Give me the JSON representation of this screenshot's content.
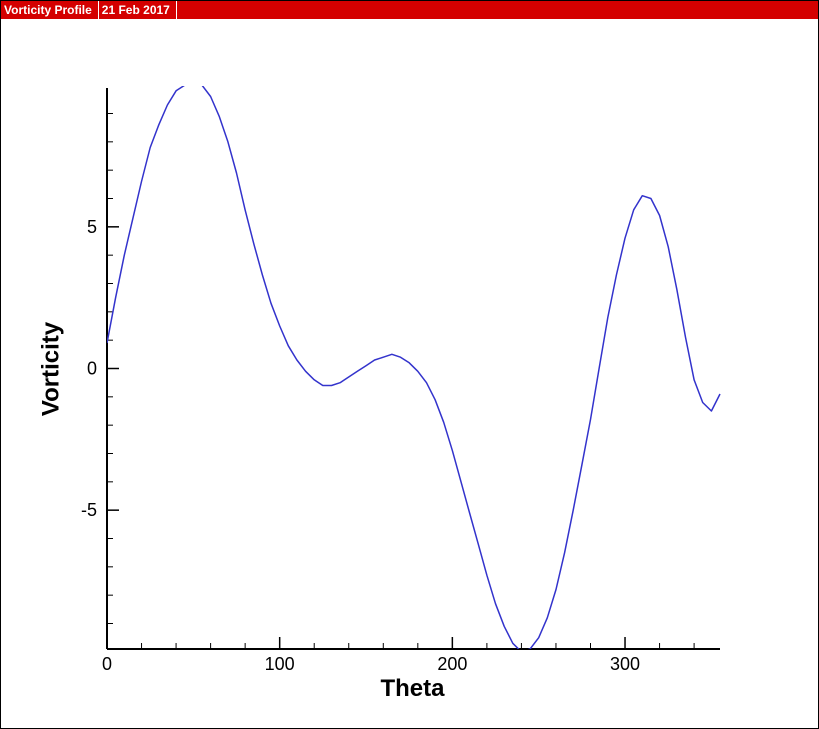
{
  "header": {
    "title": "Vorticity Profile",
    "date": "21 Feb 2017"
  },
  "colors": {
    "header_background": "#d40000",
    "series_line": "#3333cc",
    "axis": "#000000"
  },
  "chart_data": {
    "type": "line",
    "title": "",
    "xlabel": "Theta",
    "ylabel": "Vorticity",
    "xlim": [
      0,
      355
    ],
    "ylim": [
      -9.9,
      9.9
    ],
    "x_ticks": [
      0,
      100,
      200,
      300
    ],
    "y_ticks": [
      -5,
      0,
      5
    ],
    "x_tick_labels": [
      "0",
      "100",
      "200",
      "300"
    ],
    "y_tick_labels": [
      "-5",
      "0",
      "5"
    ],
    "x_minor_step": 20,
    "y_minor_step": 1,
    "grid": false,
    "legend": "none",
    "series": [
      {
        "x": [
          0,
          5,
          10,
          15,
          20,
          25,
          30,
          35,
          40,
          45,
          50,
          55,
          60,
          65,
          70,
          75,
          80,
          85,
          90,
          95,
          100,
          105,
          110,
          115,
          120,
          125,
          130,
          135,
          140,
          145,
          150,
          155,
          160,
          165,
          170,
          175,
          180,
          185,
          190,
          195,
          200,
          205,
          210,
          215,
          220,
          225,
          230,
          235,
          240,
          245,
          250,
          255,
          260,
          265,
          270,
          275,
          280,
          285,
          290,
          295,
          300,
          305,
          310,
          315,
          320,
          325,
          330,
          335,
          340,
          345,
          350,
          355
        ],
        "values": [
          0.9,
          2.5,
          4.0,
          5.3,
          6.6,
          7.8,
          8.6,
          9.3,
          9.8,
          10.0,
          10.1,
          10.0,
          9.6,
          8.9,
          8.0,
          6.9,
          5.6,
          4.4,
          3.3,
          2.3,
          1.5,
          0.8,
          0.3,
          -0.1,
          -0.4,
          -0.6,
          -0.6,
          -0.5,
          -0.3,
          -0.1,
          0.1,
          0.3,
          0.4,
          0.5,
          0.4,
          0.2,
          -0.1,
          -0.5,
          -1.1,
          -1.9,
          -2.9,
          -4.0,
          -5.1,
          -6.2,
          -7.3,
          -8.3,
          -9.1,
          -9.7,
          -10.0,
          -9.9,
          -9.5,
          -8.8,
          -7.8,
          -6.5,
          -5.0,
          -3.4,
          -1.8,
          0,
          1.8,
          3.3,
          4.6,
          5.6,
          6.1,
          6.0,
          5.4,
          4.3,
          2.8,
          1.1,
          -0.4,
          -1.2,
          -1.5,
          -0.9
        ]
      }
    ]
  }
}
